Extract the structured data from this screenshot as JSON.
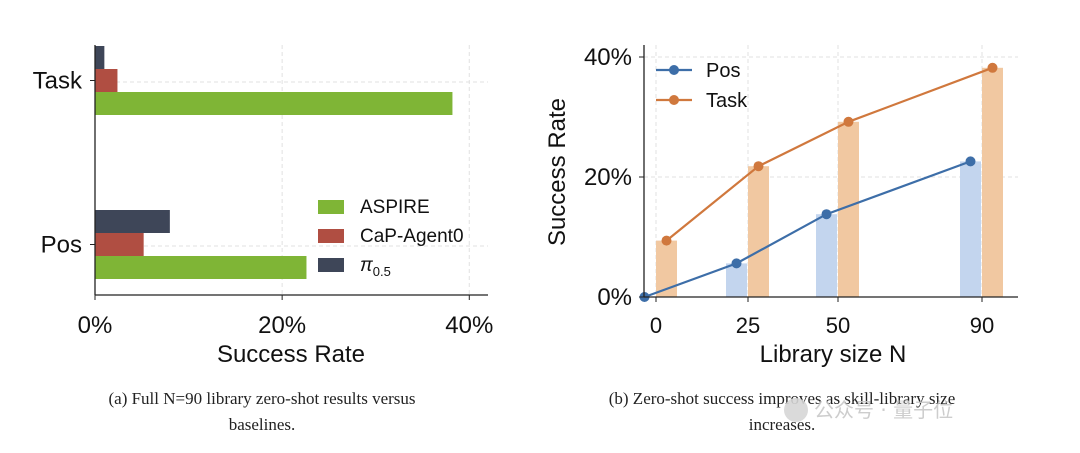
{
  "chart_data": [
    {
      "type": "bar",
      "orientation": "horizontal",
      "categories": [
        "Task",
        "Pos"
      ],
      "series": [
        {
          "name": "ASPIRE",
          "values": [
            38.2,
            22.6
          ],
          "color": "#7fb536"
        },
        {
          "name": "CaP-Agent0",
          "values": [
            2.4,
            5.2
          ],
          "color": "#b04e42"
        },
        {
          "name": "π0.5",
          "values": [
            1.0,
            8.0
          ],
          "color": "#3e4658"
        }
      ],
      "xlabel": "Success Rate",
      "ylabel": "",
      "xlim": [
        0,
        42
      ],
      "xticks": [
        "0%",
        "20%",
        "40%"
      ],
      "grid": true,
      "legend": "bottom-right"
    },
    {
      "type": "line",
      "x": [
        0,
        25,
        50,
        90
      ],
      "xticks": [
        "0",
        "25",
        "50",
        "90"
      ],
      "series": [
        {
          "name": "Pos",
          "values": [
            0.0,
            5.6,
            13.8,
            22.6
          ],
          "color": "#3d6ea8",
          "bar_color": "#c3d5ee"
        },
        {
          "name": "Task",
          "values": [
            9.4,
            21.8,
            29.2,
            38.2
          ],
          "color": "#d0783d",
          "bar_color": "#f1c8a1"
        }
      ],
      "xlabel": "Library size N",
      "ylabel": "Success Rate",
      "ylim": [
        0,
        42
      ],
      "yticks": [
        "0%",
        "20%",
        "40%"
      ],
      "grid": true,
      "legend": "top-left"
    }
  ],
  "captions": {
    "a_line1": "(a) Full N=90 library zero-shot results versus",
    "a_line2": "baselines.",
    "b_line1": "(b) Zero-shot success improves as skill-library size",
    "b_line2": "increases."
  },
  "watermark": "公众号 · 量子位"
}
